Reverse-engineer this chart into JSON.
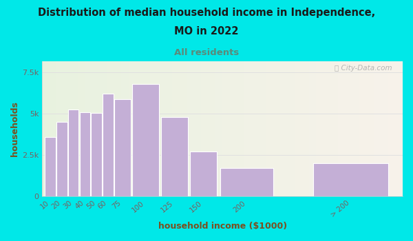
{
  "title_line1": "Distribution of median household income in Independence,",
  "title_line2": "MO in 2022",
  "subtitle": "All residents",
  "xlabel": "household income ($1000)",
  "ylabel": "households",
  "bar_labels": [
    "10",
    "20",
    "30",
    "40",
    "50",
    "60",
    "75",
    "100",
    "125",
    "150",
    "200",
    "> 200"
  ],
  "bar_lefts": [
    0,
    10,
    20,
    30,
    40,
    50,
    60,
    75,
    100,
    125,
    150,
    230
  ],
  "bar_widths": [
    10,
    10,
    10,
    10,
    10,
    10,
    15,
    25,
    25,
    25,
    50,
    70
  ],
  "bar_values": [
    3600,
    4500,
    5250,
    5100,
    5050,
    6200,
    5900,
    6800,
    4800,
    2700,
    1700,
    2000
  ],
  "bar_color": "#c4afd6",
  "bar_edgecolor": "#ffffff",
  "background_outer": "#00e8e8",
  "plot_bg_left_color": "#e8f2df",
  "plot_bg_right_color": "#f5f0ea",
  "title_color": "#1a1a1a",
  "subtitle_color": "#5a8a7a",
  "axis_label_color": "#7a5020",
  "tick_color": "#7a6060",
  "ytick_labels": [
    "0",
    "2.5k",
    "5k",
    "7.5k"
  ],
  "ytick_values": [
    0,
    2500,
    5000,
    7500
  ],
  "ylim": [
    0,
    8200
  ],
  "xlim_left": -2,
  "xlim_right": 310,
  "watermark": "ⓘ City-Data.com",
  "watermark_color": "#aaaaaa",
  "grid_color": "#e0e0e0"
}
